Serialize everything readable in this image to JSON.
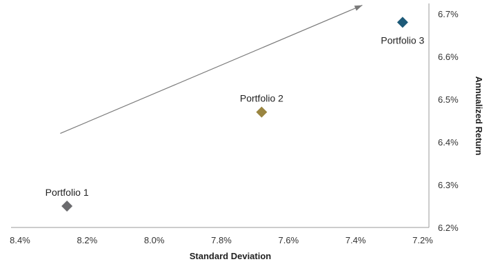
{
  "chart_data": {
    "type": "scatter",
    "title": "",
    "xlabel": "Standard Deviation",
    "ylabel": "Annualized Return",
    "x_axis_reversed": true,
    "xlim": [
      8.4,
      7.2
    ],
    "ylim": [
      6.2,
      6.7
    ],
    "x_ticks": [
      "8.4%",
      "8.2%",
      "8.0%",
      "7.8%",
      "7.6%",
      "7.4%",
      "7.2%"
    ],
    "y_ticks": [
      "6.2%",
      "6.3%",
      "6.4%",
      "6.5%",
      "6.6%",
      "6.7%"
    ],
    "y_axis_position": "right",
    "grid": false,
    "points": [
      {
        "label": "Portfolio 1",
        "x": 8.26,
        "y": 6.25,
        "color": "#6b6b6e"
      },
      {
        "label": "Portfolio 2",
        "x": 7.68,
        "y": 6.47,
        "color": "#9a8540"
      },
      {
        "label": "Portfolio 3",
        "x": 7.26,
        "y": 6.68,
        "color": "#1d5a78"
      }
    ],
    "arrow": {
      "from": {
        "x": 8.28,
        "y": 6.42
      },
      "to": {
        "x": 7.38,
        "y": 6.72
      },
      "color": "#7a7a7a"
    }
  }
}
